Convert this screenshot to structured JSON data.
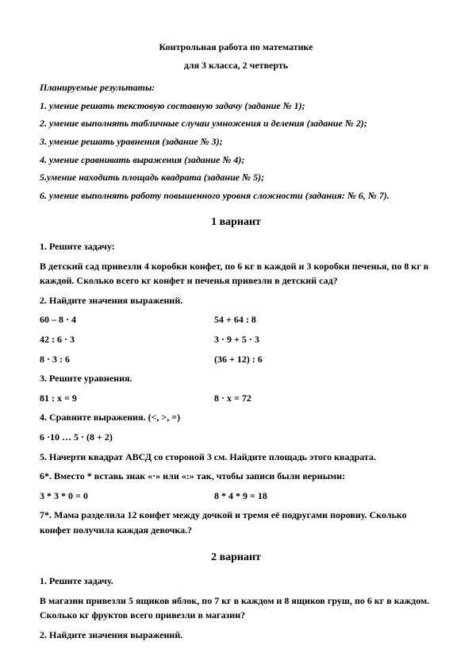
{
  "header": {
    "title1": "Контрольная работа по математике",
    "title2": "для 3 класса, 2 четверть"
  },
  "results": {
    "heading": "Планируемые результаты:",
    "items": [
      "1. умение решать текстовую составную задачу (задание № 1);",
      "2. умение выполнять табличные случаи умножения и деления (задание № 2);",
      "3. умение решать уравнения (задание № 3);",
      "4. умение сравнивать выражения (задание № 4);",
      "5.умение находить площадь квадрата (задание № 5);",
      "6. умение выполнять работу повышенного уровня сложности (задания: № 6, № 7)."
    ]
  },
  "v1": {
    "heading": "1 вариант",
    "t1h": "1. Решите задачу:",
    "t1b": "В детский сад привезли 4 коробки конфет, по 6 кг в каждой и 3 коробки печенья, по 8 кг в каждой. Сколько всего кг конфет и печенья привезли в детский сад?",
    "t2h": "2. Найдите значения выражений.",
    "t2": {
      "r0a": "60 – 8 · 4",
      "r0b": "54 + 64 : 8",
      "r1a": "42 : 6 · 3",
      "r1b": "3 · 9 + 5 · 3",
      "r2a": "8 · 3 : 6",
      "r2b": "(36 + 12) : 6"
    },
    "t3h": "3. Решите уравнения.",
    "t3": {
      "a": "81 : х = 9",
      "b": "8 · х = 72"
    },
    "t4h": "4. Сравните выражения. (<, >, =)",
    "t4b": "6 ·10 … 5 · (8 + 2)",
    "t5": "5. Начерти квадрат АВСД со стороной 3 см. Найдите площадь этого квадрата.",
    "t6h": "6*. Вместо * вставь знак «·» или «:» так, чтобы записи были верными:",
    "t6": {
      "a": "3 * 3 * 0 = 0",
      "b": "8 * 4 * 9 = 18"
    },
    "t7": "7*. Мама разделила 12 конфет между дочкой и тремя её подругами поровну. Сколько конфет получила каждая девочка.?"
  },
  "v2": {
    "heading": "2 вариант",
    "t1h": "1. Решите задачу.",
    "t1b": "В магазин привезли 5 ящиков яблок, по 7 кг в каждом и 8 ящиков груш, по 6 кг в каждом. Сколько кг фруктов всего привезли в магазин?",
    "t2h": "2. Найдите значения выражений."
  }
}
